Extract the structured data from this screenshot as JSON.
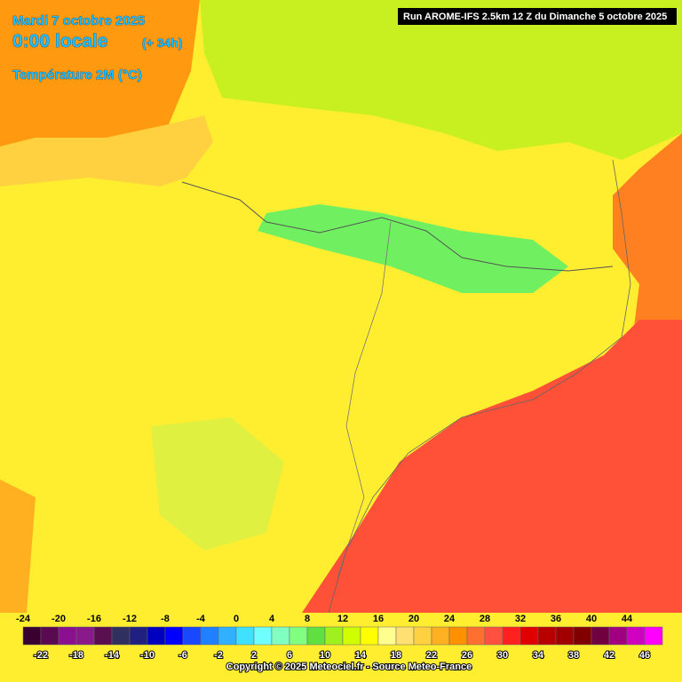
{
  "header": {
    "date": "Mardi 7 octobre 2025",
    "time": "0:00 locale",
    "lead": "(+ 34h)",
    "variable": "Température 2M (°C)",
    "run": "Run AROME-IFS 2.5km 12 Z du Dimanche 5 octobre 2025"
  },
  "legend": {
    "labels": [
      -24,
      -22,
      -20,
      -18,
      -16,
      -14,
      -12,
      -10,
      -8,
      -6,
      -4,
      -2,
      0,
      2,
      4,
      6,
      8,
      10,
      12,
      14,
      16,
      18,
      20,
      22,
      24,
      26,
      28,
      30,
      32,
      34,
      36,
      38,
      40,
      42,
      44,
      46
    ],
    "colors": [
      "#3a0030",
      "#5a0a50",
      "#8a1090",
      "#8a1a8a",
      "#5a1050",
      "#303060",
      "#202080",
      "#0000c0",
      "#0000ff",
      "#1848ff",
      "#2080ff",
      "#30b0ff",
      "#40e0ff",
      "#70ffff",
      "#80ffc0",
      "#80ff80",
      "#60e040",
      "#a0f020",
      "#d0ff00",
      "#ffff00",
      "#ffff90",
      "#ffe070",
      "#ffd040",
      "#ffb020",
      "#ff9000",
      "#ff7030",
      "#ff5040",
      "#ff2020",
      "#e00000",
      "#b80000",
      "#a00000",
      "#800000",
      "#700040",
      "#a00080",
      "#d000c0",
      "#ff00ff",
      "#ff80ff"
    ]
  },
  "footer": "Copyright © 2025 Meteociel.fr - Source Meteo-France"
}
